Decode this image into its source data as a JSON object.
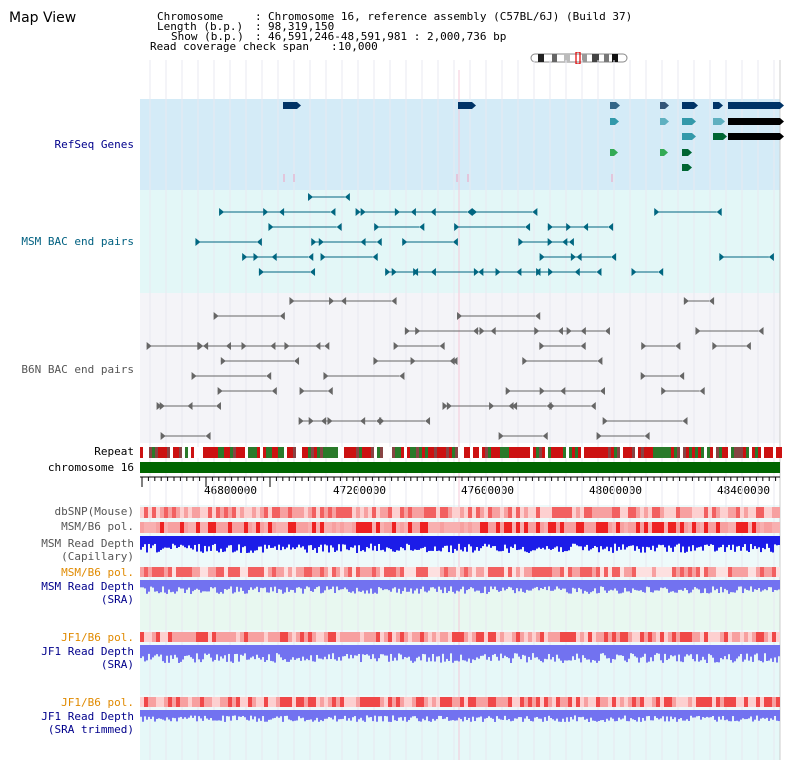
{
  "title": "Map View",
  "header": {
    "chromosome_label": "Chromosome",
    "chromosome_value": "Chromosome 16, reference assembly (C57BL/6J) (Build 37)",
    "length_label": "Length (b.p.)",
    "length_value": "98,319,150",
    "show_label": "Show (b.p.)",
    "show_value": "46,591,246-48,591,981 : 2,000,736 bp",
    "read_coverage_label": "Read coverage check span",
    "read_coverage_value": "10,000"
  },
  "tracks": {
    "refseq": "RefSeq Genes",
    "msm_bac": "MSM BAC end pairs",
    "b6n_bac": "B6N BAC end pairs",
    "repeat": "Repeat",
    "chromosome": "chromosome 16",
    "dbsnp": "dbSNP(Mouse)",
    "msm_pol": "MSM/B6 pol.",
    "msm_depth_cap_1": "MSM Read Depth",
    "msm_depth_cap_2": "(Capillary)",
    "msm_pol_sra": "MSM/B6 pol.",
    "msm_depth_sra_1": "MSM Read Depth",
    "msm_depth_sra_2": "(SRA)",
    "jf1_pol": "JF1/B6 pol.",
    "jf1_depth_1": "JF1 Read Depth",
    "jf1_depth_2": "(SRA)",
    "jf1_pol_trim": "JF1/B6 pol.",
    "jf1_trim_1": "JF1 Read Depth",
    "jf1_trim_2": "(SRA trimmed)"
  },
  "axis": {
    "ticks": [
      "46800000",
      "47200000",
      "47600000",
      "48000000",
      "48400000"
    ]
  },
  "colors": {
    "refseq_bg": "#d4ebf7",
    "msm_bg": "#e3f7f7",
    "b6n_bg": "#f4f4f8",
    "depth_bg": "#e8f8f0",
    "chrom": "#006600",
    "msm_line": "#006680",
    "b6n_line": "#666666",
    "depth_dark": "#1c1ce8",
    "depth_light": "#7272f0"
  }
}
